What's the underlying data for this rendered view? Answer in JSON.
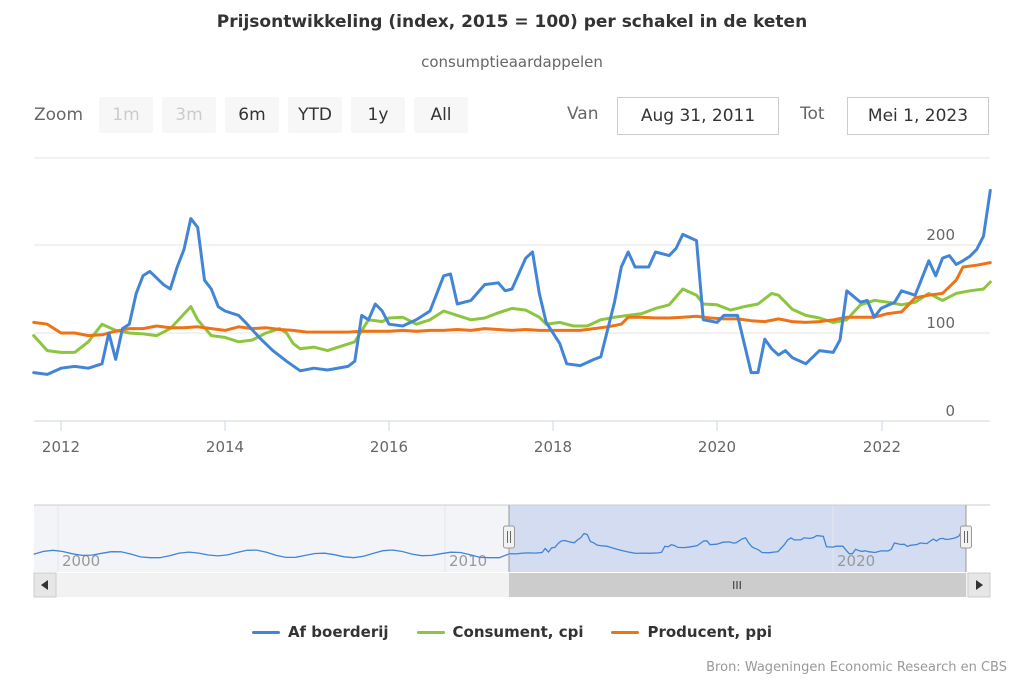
{
  "title": "Prijsontwikkeling (index, 2015 = 100) per schakel in de keten",
  "subtitle": "consumptieaardappelen",
  "zoom": {
    "label": "Zoom",
    "buttons": [
      "1m",
      "3m",
      "6m",
      "YTD",
      "1y",
      "All"
    ],
    "disabled": [
      "1m",
      "3m"
    ]
  },
  "range": {
    "from_label": "Van",
    "from_value": "Aug 31, 2011",
    "to_label": "Tot",
    "to_value": "Mei 1, 2023"
  },
  "credit": "Bron: Wageningen Economic Research en CBS",
  "navigator": {
    "tick_labels": [
      "2000",
      "2010",
      "2020"
    ],
    "scroll_grip": "III"
  },
  "colors": {
    "af_boerderij": "#4285d6",
    "consument": "#8cc63f",
    "producent": "#ee7317",
    "navigator_mask": "#d3dcf0"
  },
  "chart_data": {
    "type": "line",
    "title": "Prijsontwikkeling (index, 2015 = 100) per schakel in de keten",
    "subtitle": "consumptieaardappelen",
    "x_tick_labels": [
      "2012",
      "2014",
      "2016",
      "2018",
      "2020",
      "2022"
    ],
    "y_tick_labels": [
      "0",
      "100",
      "200"
    ],
    "xlim": [
      "2011-08-31",
      "2023-05-01"
    ],
    "ylim": [
      0,
      290
    ],
    "grid": true,
    "legend_position": "bottom",
    "series": [
      {
        "name": "Af boerderij",
        "color": "#4285d6",
        "points": [
          [
            "2011-09",
            55
          ],
          [
            "2011-11",
            53
          ],
          [
            "2012-01",
            60
          ],
          [
            "2012-03",
            62
          ],
          [
            "2012-05",
            60
          ],
          [
            "2012-07",
            65
          ],
          [
            "2012-08",
            100
          ],
          [
            "2012-09",
            70
          ],
          [
            "2012-10",
            105
          ],
          [
            "2012-11",
            110
          ],
          [
            "2012-12",
            145
          ],
          [
            "2013-01",
            165
          ],
          [
            "2013-02",
            170
          ],
          [
            "2013-04",
            155
          ],
          [
            "2013-05",
            150
          ],
          [
            "2013-06",
            175
          ],
          [
            "2013-07",
            195
          ],
          [
            "2013-08",
            230
          ],
          [
            "2013-09",
            220
          ],
          [
            "2013-10",
            160
          ],
          [
            "2013-11",
            150
          ],
          [
            "2013-12",
            130
          ],
          [
            "2014-01",
            125
          ],
          [
            "2014-03",
            120
          ],
          [
            "2014-04",
            112
          ],
          [
            "2014-06",
            95
          ],
          [
            "2014-08",
            80
          ],
          [
            "2014-10",
            68
          ],
          [
            "2014-12",
            57
          ],
          [
            "2015-02",
            60
          ],
          [
            "2015-04",
            58
          ],
          [
            "2015-07",
            62
          ],
          [
            "2015-08",
            68
          ],
          [
            "2015-09",
            120
          ],
          [
            "2015-10",
            115
          ],
          [
            "2015-11",
            133
          ],
          [
            "2015-12",
            125
          ],
          [
            "2016-01",
            110
          ],
          [
            "2016-03",
            108
          ],
          [
            "2016-05",
            115
          ],
          [
            "2016-07",
            125
          ],
          [
            "2016-09",
            165
          ],
          [
            "2016-10",
            167
          ],
          [
            "2016-11",
            133
          ],
          [
            "2017-01",
            137
          ],
          [
            "2017-03",
            155
          ],
          [
            "2017-05",
            157
          ],
          [
            "2017-06",
            148
          ],
          [
            "2017-07",
            150
          ],
          [
            "2017-09",
            185
          ],
          [
            "2017-10",
            192
          ],
          [
            "2017-11",
            145
          ],
          [
            "2017-12",
            112
          ],
          [
            "2018-02",
            88
          ],
          [
            "2018-03",
            65
          ],
          [
            "2018-05",
            63
          ],
          [
            "2018-07",
            70
          ],
          [
            "2018-08",
            73
          ],
          [
            "2018-10",
            135
          ],
          [
            "2018-11",
            175
          ],
          [
            "2018-12",
            192
          ],
          [
            "2019-01",
            175
          ],
          [
            "2019-03",
            175
          ],
          [
            "2019-04",
            192
          ],
          [
            "2019-06",
            188
          ],
          [
            "2019-07",
            196
          ],
          [
            "2019-08",
            212
          ],
          [
            "2019-10",
            205
          ],
          [
            "2019-11",
            115
          ],
          [
            "2020-01",
            112
          ],
          [
            "2020-02",
            120
          ],
          [
            "2020-04",
            120
          ],
          [
            "2020-06",
            55
          ],
          [
            "2020-07",
            55
          ],
          [
            "2020-08",
            93
          ],
          [
            "2020-09",
            82
          ],
          [
            "2020-10",
            75
          ],
          [
            "2020-11",
            80
          ],
          [
            "2020-12",
            72
          ],
          [
            "2021-02",
            65
          ],
          [
            "2021-04",
            80
          ],
          [
            "2021-06",
            78
          ],
          [
            "2021-07",
            92
          ],
          [
            "2021-08",
            148
          ],
          [
            "2021-10",
            135
          ],
          [
            "2021-11",
            137
          ],
          [
            "2021-12",
            118
          ],
          [
            "2022-01",
            128
          ],
          [
            "2022-03",
            135
          ],
          [
            "2022-04",
            148
          ],
          [
            "2022-06",
            143
          ],
          [
            "2022-08",
            182
          ],
          [
            "2022-09",
            165
          ],
          [
            "2022-10",
            185
          ],
          [
            "2022-11",
            188
          ],
          [
            "2022-12",
            178
          ],
          [
            "2023-01",
            182
          ],
          [
            "2023-02",
            187
          ],
          [
            "2023-03",
            195
          ],
          [
            "2023-04",
            210
          ],
          [
            "2023-05",
            262
          ]
        ]
      },
      {
        "name": "Consument, cpi",
        "color": "#8cc63f",
        "points": [
          [
            "2011-09",
            97
          ],
          [
            "2011-11",
            80
          ],
          [
            "2012-01",
            78
          ],
          [
            "2012-03",
            78
          ],
          [
            "2012-05",
            90
          ],
          [
            "2012-07",
            110
          ],
          [
            "2012-09",
            103
          ],
          [
            "2012-11",
            100
          ],
          [
            "2013-01",
            99
          ],
          [
            "2013-03",
            97
          ],
          [
            "2013-05",
            105
          ],
          [
            "2013-08",
            130
          ],
          [
            "2013-09",
            115
          ],
          [
            "2013-11",
            97
          ],
          [
            "2014-01",
            95
          ],
          [
            "2014-03",
            90
          ],
          [
            "2014-05",
            92
          ],
          [
            "2014-07",
            100
          ],
          [
            "2014-09",
            105
          ],
          [
            "2014-10",
            100
          ],
          [
            "2014-11",
            88
          ],
          [
            "2014-12",
            82
          ],
          [
            "2015-02",
            84
          ],
          [
            "2015-04",
            80
          ],
          [
            "2015-06",
            85
          ],
          [
            "2015-08",
            90
          ],
          [
            "2015-10",
            115
          ],
          [
            "2015-12",
            113
          ],
          [
            "2016-01",
            117
          ],
          [
            "2016-03",
            118
          ],
          [
            "2016-05",
            110
          ],
          [
            "2016-07",
            115
          ],
          [
            "2016-09",
            125
          ],
          [
            "2016-11",
            120
          ],
          [
            "2017-01",
            115
          ],
          [
            "2017-03",
            117
          ],
          [
            "2017-05",
            123
          ],
          [
            "2017-07",
            128
          ],
          [
            "2017-09",
            126
          ],
          [
            "2017-11",
            118
          ],
          [
            "2017-12",
            110
          ],
          [
            "2018-02",
            112
          ],
          [
            "2018-04",
            108
          ],
          [
            "2018-06",
            108
          ],
          [
            "2018-08",
            115
          ],
          [
            "2018-10",
            118
          ],
          [
            "2018-12",
            120
          ],
          [
            "2019-02",
            122
          ],
          [
            "2019-04",
            128
          ],
          [
            "2019-06",
            132
          ],
          [
            "2019-08",
            150
          ],
          [
            "2019-10",
            143
          ],
          [
            "2019-11",
            133
          ],
          [
            "2020-01",
            132
          ],
          [
            "2020-03",
            126
          ],
          [
            "2020-05",
            130
          ],
          [
            "2020-07",
            133
          ],
          [
            "2020-09",
            145
          ],
          [
            "2020-10",
            143
          ],
          [
            "2020-12",
            127
          ],
          [
            "2021-02",
            120
          ],
          [
            "2021-04",
            117
          ],
          [
            "2021-06",
            112
          ],
          [
            "2021-08",
            115
          ],
          [
            "2021-10",
            132
          ],
          [
            "2021-12",
            137
          ],
          [
            "2022-02",
            135
          ],
          [
            "2022-04",
            132
          ],
          [
            "2022-06",
            135
          ],
          [
            "2022-08",
            145
          ],
          [
            "2022-10",
            137
          ],
          [
            "2022-12",
            145
          ],
          [
            "2023-02",
            148
          ],
          [
            "2023-04",
            150
          ],
          [
            "2023-05",
            158
          ]
        ]
      },
      {
        "name": "Producent, ppi",
        "color": "#ee7317",
        "points": [
          [
            "2011-09",
            112
          ],
          [
            "2011-11",
            110
          ],
          [
            "2012-01",
            100
          ],
          [
            "2012-03",
            100
          ],
          [
            "2012-05",
            97
          ],
          [
            "2012-07",
            98
          ],
          [
            "2012-09",
            102
          ],
          [
            "2012-11",
            105
          ],
          [
            "2013-01",
            105
          ],
          [
            "2013-03",
            108
          ],
          [
            "2013-05",
            106
          ],
          [
            "2013-07",
            106
          ],
          [
            "2013-09",
            107
          ],
          [
            "2013-11",
            105
          ],
          [
            "2014-01",
            103
          ],
          [
            "2014-03",
            107
          ],
          [
            "2014-05",
            105
          ],
          [
            "2014-07",
            106
          ],
          [
            "2014-09",
            104
          ],
          [
            "2014-11",
            103
          ],
          [
            "2015-01",
            101
          ],
          [
            "2015-03",
            101
          ],
          [
            "2015-05",
            101
          ],
          [
            "2015-07",
            101
          ],
          [
            "2015-09",
            102
          ],
          [
            "2015-11",
            102
          ],
          [
            "2016-01",
            102
          ],
          [
            "2016-03",
            103
          ],
          [
            "2016-05",
            102
          ],
          [
            "2016-07",
            103
          ],
          [
            "2016-09",
            103
          ],
          [
            "2016-11",
            104
          ],
          [
            "2017-01",
            103
          ],
          [
            "2017-03",
            105
          ],
          [
            "2017-05",
            104
          ],
          [
            "2017-07",
            103
          ],
          [
            "2017-09",
            104
          ],
          [
            "2017-11",
            103
          ],
          [
            "2018-01",
            103
          ],
          [
            "2018-03",
            103
          ],
          [
            "2018-05",
            103
          ],
          [
            "2018-07",
            105
          ],
          [
            "2018-09",
            107
          ],
          [
            "2018-11",
            110
          ],
          [
            "2018-12",
            118
          ],
          [
            "2019-02",
            118
          ],
          [
            "2019-04",
            117
          ],
          [
            "2019-06",
            117
          ],
          [
            "2019-08",
            118
          ],
          [
            "2019-10",
            119
          ],
          [
            "2019-12",
            117
          ],
          [
            "2020-02",
            116
          ],
          [
            "2020-04",
            116
          ],
          [
            "2020-06",
            114
          ],
          [
            "2020-08",
            113
          ],
          [
            "2020-10",
            116
          ],
          [
            "2020-12",
            113
          ],
          [
            "2021-02",
            112
          ],
          [
            "2021-04",
            113
          ],
          [
            "2021-06",
            115
          ],
          [
            "2021-08",
            118
          ],
          [
            "2021-10",
            118
          ],
          [
            "2021-12",
            118
          ],
          [
            "2022-02",
            122
          ],
          [
            "2022-04",
            124
          ],
          [
            "2022-06",
            140
          ],
          [
            "2022-08",
            143
          ],
          [
            "2022-10",
            145
          ],
          [
            "2022-12",
            160
          ],
          [
            "2023-01",
            175
          ],
          [
            "2023-03",
            177
          ],
          [
            "2023-05",
            180
          ]
        ]
      }
    ]
  }
}
